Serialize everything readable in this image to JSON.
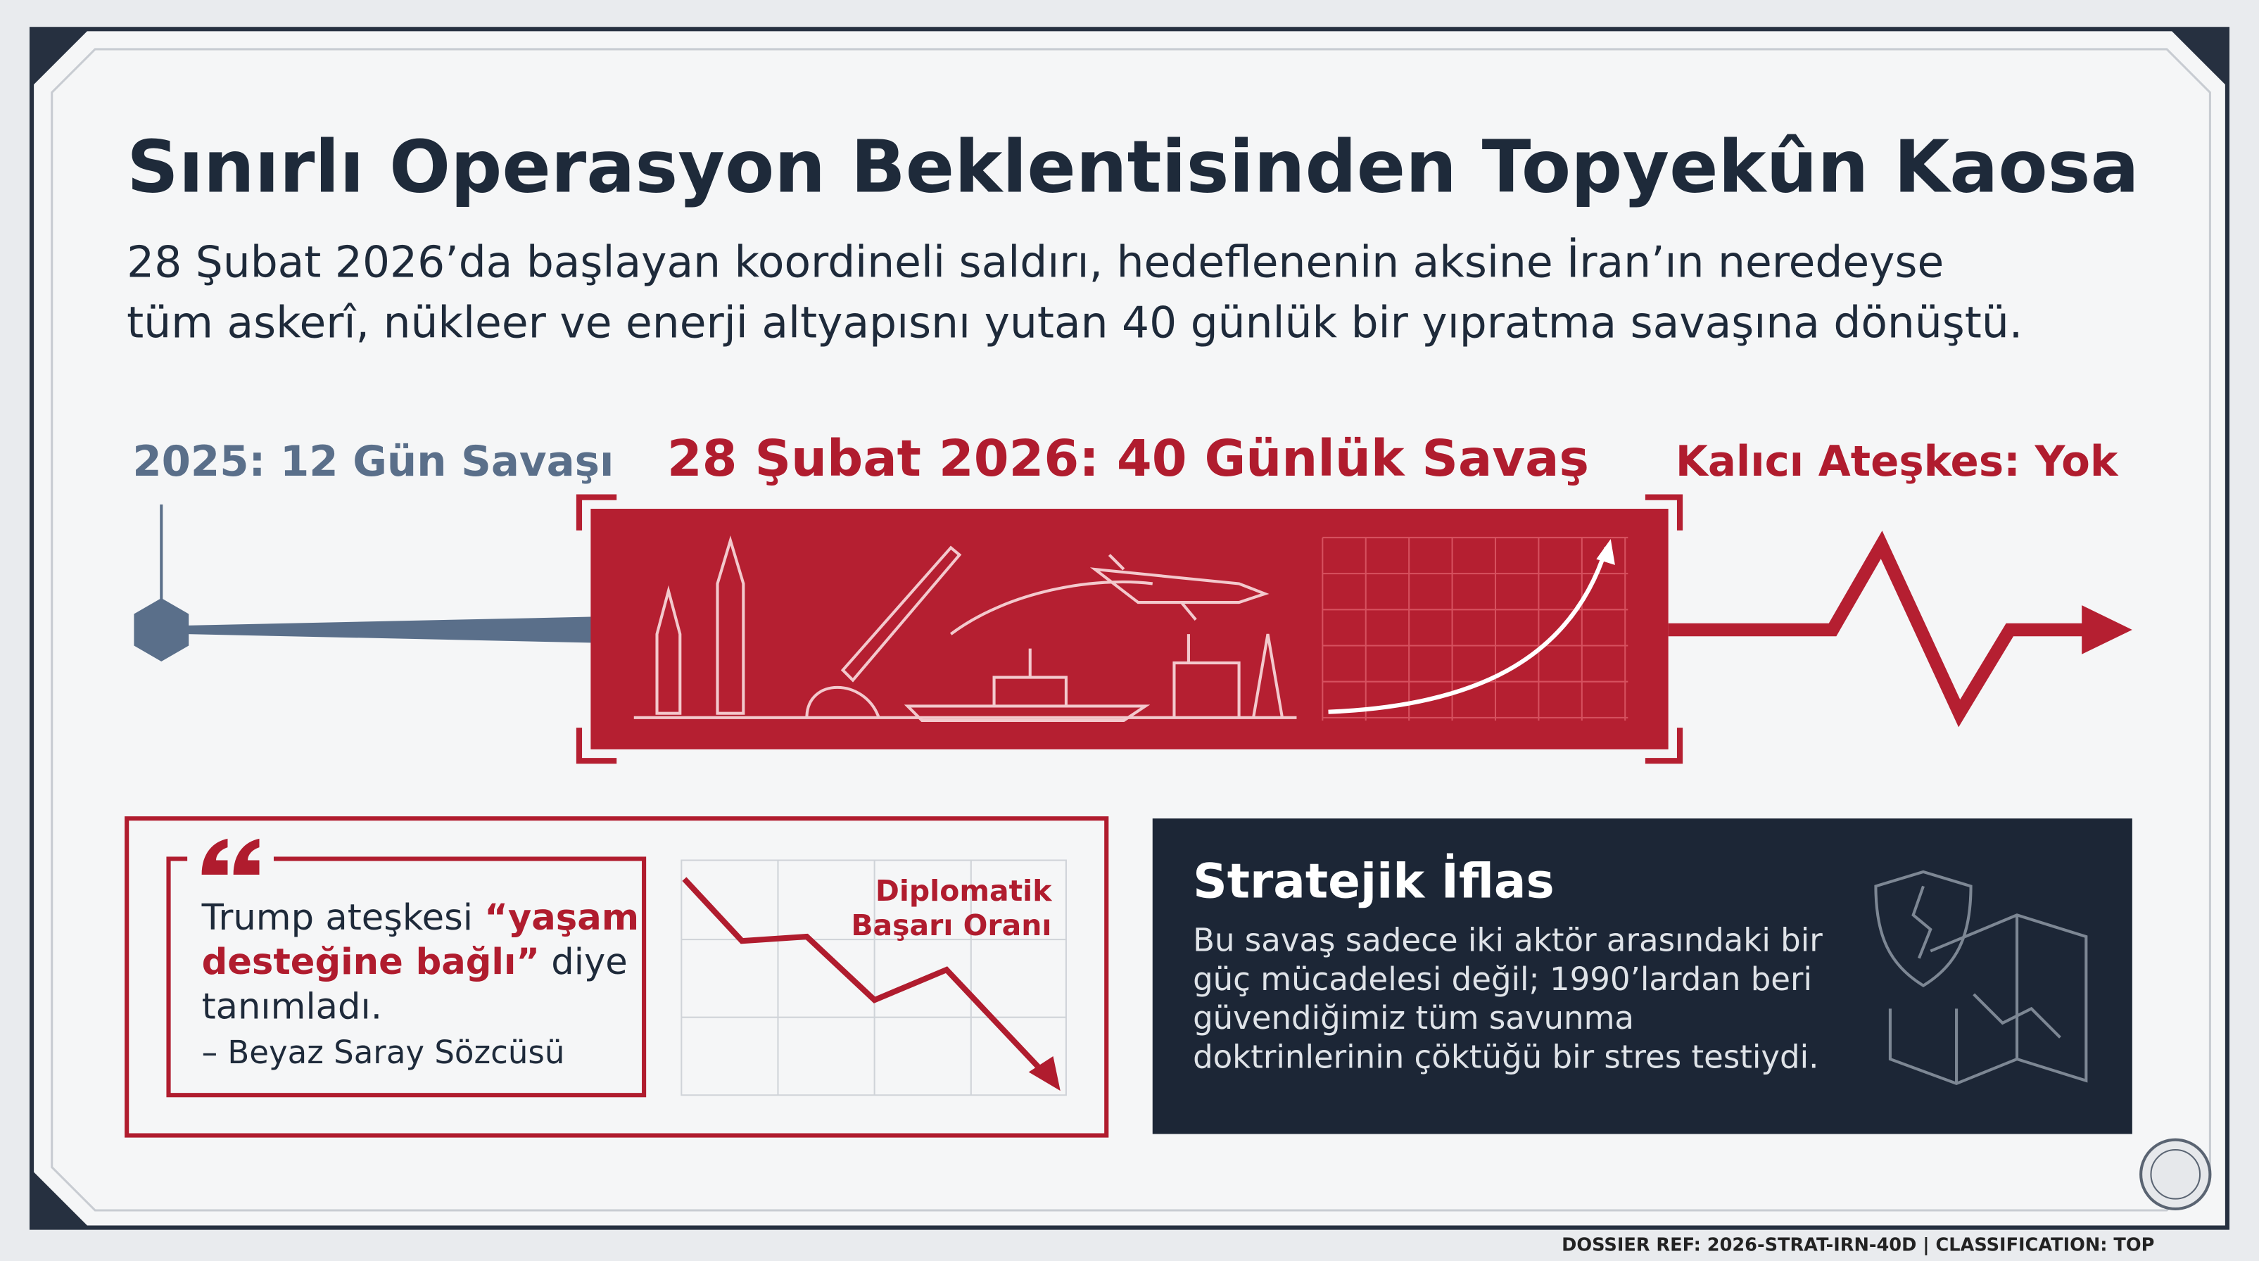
{
  "title": "Sınırlı Operasyon Beklentisinden Topyekûn Kaosa",
  "subtitle": [
    "28 Şubat 2026’da başlayan koordineli saldırı, hedeflenenin aksine İran’ın neredeyse",
    "tüm askerî, nükleer ve enerji altyapısnı yutan 40 günlük bir yıpratma savaşına dönüştü."
  ],
  "timeline": {
    "start": "2025: 12 Gün Savaşı",
    "main": "28 Şubat 2026: 40 Günlük Savaş",
    "end": "Kalıcı Ateşkes: Yok"
  },
  "quote": {
    "lines": [
      [
        {
          "text": "Trump ateşkesi ",
          "bold": false
        },
        {
          "text": "“yaşam",
          "bold": true
        }
      ],
      [
        {
          "text": "desteğine bağlı”",
          "bold": true
        },
        {
          "text": " diye",
          "bold": false
        }
      ],
      [
        {
          "text": "tanımladı.",
          "bold": false
        }
      ]
    ],
    "source": "– Beyaz Saray Sözcüsü",
    "chart_title": [
      "Diplomatik",
      "Başarı Oranı"
    ]
  },
  "panel": {
    "title": "Stratejik İflas",
    "body": [
      "Bu savaş sadece iki aktör arasındaki bir",
      "güç mücadelesi değil; 1990’lardan beri",
      "güvendiğimiz tüm savunma",
      "doktrinlerinin çöktüğü bir stres testiydi."
    ]
  },
  "footer": "DOSSIER REF: 2026-STRAT-IRN-40D | CLASSIFICATION: TOP"
}
